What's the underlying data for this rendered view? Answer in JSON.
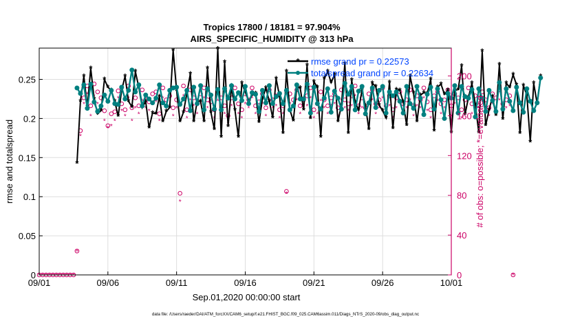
{
  "chart_data": {
    "type": "line",
    "title_line1": "Tropics 17800 / 18181 = 97.904%",
    "title_line2": "AIRS_SPECIFIC_HUMIDITY @ 313 hPa",
    "xlabel": "Sep.01,2020 00:00:00 start",
    "ylabel_left": "rmse and totalspread",
    "ylabel_right": "# of obs: o=possible; *=evaluated",
    "footer": "data file: /Users/raeder/DAI/ATM_forcXX/CAM6_setup/f.e21.FHIST_BGC.f09_025.CAM6assim.011/Diags_NTrS_2020-09/obs_diag_output.nc",
    "x_range": [
      0,
      30
    ],
    "y_left_range": [
      0,
      0.29
    ],
    "y_right_range": [
      0,
      228
    ],
    "x_ticks": [
      {
        "value": 0,
        "label": "09/01"
      },
      {
        "value": 5,
        "label": "09/06"
      },
      {
        "value": 10,
        "label": "09/11"
      },
      {
        "value": 15,
        "label": "09/16"
      },
      {
        "value": 20,
        "label": "09/21"
      },
      {
        "value": 25,
        "label": "09/26"
      },
      {
        "value": 30,
        "label": "10/01"
      }
    ],
    "y_left_ticks": [
      {
        "value": 0,
        "label": "0"
      },
      {
        "value": 0.05,
        "label": "0.05"
      },
      {
        "value": 0.1,
        "label": "0.1"
      },
      {
        "value": 0.15,
        "label": "0.15"
      },
      {
        "value": 0.2,
        "label": "0.2"
      },
      {
        "value": 0.25,
        "label": "0.25"
      }
    ],
    "y_right_ticks": [
      {
        "value": 0,
        "label": "0"
      },
      {
        "value": 40,
        "label": "40"
      },
      {
        "value": 80,
        "label": "80"
      },
      {
        "value": 120,
        "label": "120"
      },
      {
        "value": 160,
        "label": "160"
      },
      {
        "value": 200,
        "label": "200"
      }
    ],
    "legend": [
      {
        "label": "rmse grand pr = 0.22573",
        "color": "#000000"
      },
      {
        "label": "totalspread grand pr = 0.22634",
        "color": "#008080"
      }
    ],
    "series": [
      {
        "name": "rmse",
        "color": "#000000",
        "x_start": 2.75,
        "x_step": 0.25,
        "values": [
          0.143,
          0.222,
          0.254,
          0.215,
          0.264,
          0.225,
          0.206,
          0.21,
          0.25,
          0.24,
          0.236,
          0.222,
          0.203,
          0.236,
          0.254,
          0.222,
          0.215,
          0.26,
          0.24,
          0.214,
          0.222,
          0.188,
          0.207,
          0.206,
          0.228,
          0.196,
          0.209,
          0.214,
          0.287,
          0.236,
          0.196,
          0.208,
          0.232,
          0.257,
          0.196,
          0.222,
          0.222,
          0.196,
          0.264,
          0.208,
          0.186,
          0.289,
          0.176,
          0.272,
          0.19,
          0.241,
          0.211,
          0.176,
          0.245,
          0.234,
          0.222,
          0.23,
          0.232,
          0.195,
          0.225,
          0.239,
          0.222,
          0.201,
          0.251,
          0.228,
          0.181,
          0.26,
          0.211,
          0.197,
          0.24,
          0.239,
          0.211,
          0.268,
          0.2,
          0.247,
          0.24,
          0.176,
          0.251,
          0.26,
          0.246,
          0.256,
          0.196,
          0.217,
          0.27,
          0.181,
          0.249,
          0.221,
          0.211,
          0.236,
          0.216,
          0.186,
          0.245,
          0.241,
          0.217,
          0.21,
          0.201,
          0.246,
          0.187,
          0.237,
          0.236,
          0.221,
          0.191,
          0.254,
          0.233,
          0.196,
          0.23,
          0.233,
          0.232,
          0.25,
          0.184,
          0.24,
          0.244,
          0.231,
          0.236,
          0.182,
          0.236,
          0.237,
          0.267,
          0.205,
          0.227,
          0.245,
          0.218,
          0.182,
          0.286,
          0.191,
          0.211,
          0.228,
          0.204,
          0.269,
          0.199,
          0.245,
          0.24,
          0.256,
          0.243,
          0.181,
          0.242,
          0.23,
          0.17,
          0.245,
          0.219,
          0.254
        ]
      },
      {
        "name": "totalspread",
        "color": "#008080",
        "x_start": 2.75,
        "x_step": 0.25,
        "values": [
          0.239,
          0.232,
          0.243,
          0.213,
          0.244,
          0.221,
          0.209,
          0.216,
          0.23,
          0.222,
          0.236,
          0.219,
          0.218,
          0.24,
          0.225,
          0.236,
          0.262,
          0.234,
          0.243,
          0.216,
          0.23,
          0.225,
          0.22,
          0.226,
          0.243,
          0.22,
          0.216,
          0.236,
          0.239,
          0.24,
          0.218,
          0.225,
          0.236,
          0.21,
          0.24,
          0.219,
          0.242,
          0.211,
          0.238,
          0.23,
          0.212,
          0.237,
          0.211,
          0.238,
          0.226,
          0.242,
          0.225,
          0.233,
          0.223,
          0.241,
          0.219,
          0.233,
          0.231,
          0.209,
          0.236,
          0.22,
          0.242,
          0.219,
          0.228,
          0.232,
          0.219,
          0.236,
          0.211,
          0.216,
          0.243,
          0.225,
          0.225,
          0.244,
          0.207,
          0.24,
          0.219,
          0.212,
          0.226,
          0.238,
          0.208,
          0.235,
          0.226,
          0.212,
          0.245,
          0.231,
          0.241,
          0.211,
          0.235,
          0.241,
          0.206,
          0.22,
          0.239,
          0.214,
          0.236,
          0.241,
          0.207,
          0.234,
          0.229,
          0.234,
          0.222,
          0.207,
          0.241,
          0.219,
          0.213,
          0.241,
          0.226,
          0.205,
          0.231,
          0.24,
          0.212,
          0.238,
          0.224,
          0.2,
          0.232,
          0.226,
          0.242,
          0.207,
          0.241,
          0.228,
          0.226,
          0.237,
          0.202,
          0.238,
          0.226,
          0.209,
          0.236,
          0.223,
          0.209,
          0.246,
          0.212,
          0.238,
          0.222,
          0.21,
          0.24,
          0.22,
          0.208,
          0.238,
          0.222,
          0.21,
          0.22,
          0.252
        ]
      }
    ],
    "obs_possible": {
      "color": "#cc0066",
      "x_start": 0,
      "x_step": 0.25,
      "values": [
        0,
        0,
        0,
        0,
        0,
        0,
        0,
        0,
        0,
        0,
        0,
        24,
        145,
        178,
        190,
        170,
        192,
        184,
        178,
        165,
        150,
        162,
        164,
        185,
        172,
        166,
        190,
        168,
        178,
        170,
        186,
        176,
        174,
        182,
        184,
        162,
        188,
        176,
        180,
        168,
        176,
        82,
        190,
        166,
        186,
        178,
        172,
        182,
        188,
        176,
        174,
        166,
        184,
        178,
        170,
        160,
        178,
        188,
        172,
        166,
        182,
        176,
        188,
        170,
        174,
        182,
        168,
        186,
        176,
        180,
        166,
        170,
        84,
        182,
        176,
        186,
        170,
        176,
        180,
        188,
        166,
        172,
        184,
        176,
        170,
        178,
        182,
        168,
        186,
        176,
        172,
        180,
        190,
        170,
        178,
        168,
        182,
        186,
        172,
        176,
        188,
        170,
        180,
        166,
        178,
        184,
        172,
        176,
        186,
        170,
        180,
        176,
        188,
        174,
        166,
        180,
        184,
        172,
        176,
        186,
        170,
        182,
        178,
        166,
        176,
        188,
        172,
        180,
        170,
        184,
        176,
        168,
        182,
        178,
        186,
        172,
        176,
        180,
        0
      ]
    },
    "obs_evaluated": {
      "color": "#cc0066",
      "x_start": 0,
      "x_step": 0.25,
      "values": [
        0,
        0,
        0,
        0,
        0,
        0,
        0,
        0,
        0,
        0,
        0,
        24,
        140,
        172,
        182,
        160,
        180,
        172,
        168,
        155,
        148,
        150,
        155,
        178,
        165,
        160,
        178,
        155,
        168,
        162,
        175,
        168,
        165,
        172,
        174,
        155,
        178,
        168,
        170,
        160,
        168,
        74,
        180,
        158,
        176,
        170,
        162,
        172,
        178,
        168,
        165,
        158,
        175,
        168,
        162,
        152,
        170,
        178,
        162,
        158,
        172,
        168,
        178,
        162,
        165,
        172,
        160,
        176,
        168,
        170,
        158,
        162,
        82,
        172,
        168,
        176,
        162,
        168,
        170,
        178,
        158,
        162,
        175,
        168,
        162,
        170,
        172,
        160,
        176,
        168,
        165,
        170,
        180,
        162,
        168,
        160,
        172,
        176,
        162,
        168,
        178,
        160,
        170,
        158,
        168,
        175,
        162,
        168,
        176,
        160,
        170,
        168,
        178,
        165,
        158,
        170,
        175,
        162,
        168,
        176,
        160,
        172,
        168,
        158,
        168,
        178,
        162,
        170,
        160,
        175,
        168,
        160,
        172,
        168,
        176,
        162,
        168,
        170,
        0
      ]
    }
  }
}
